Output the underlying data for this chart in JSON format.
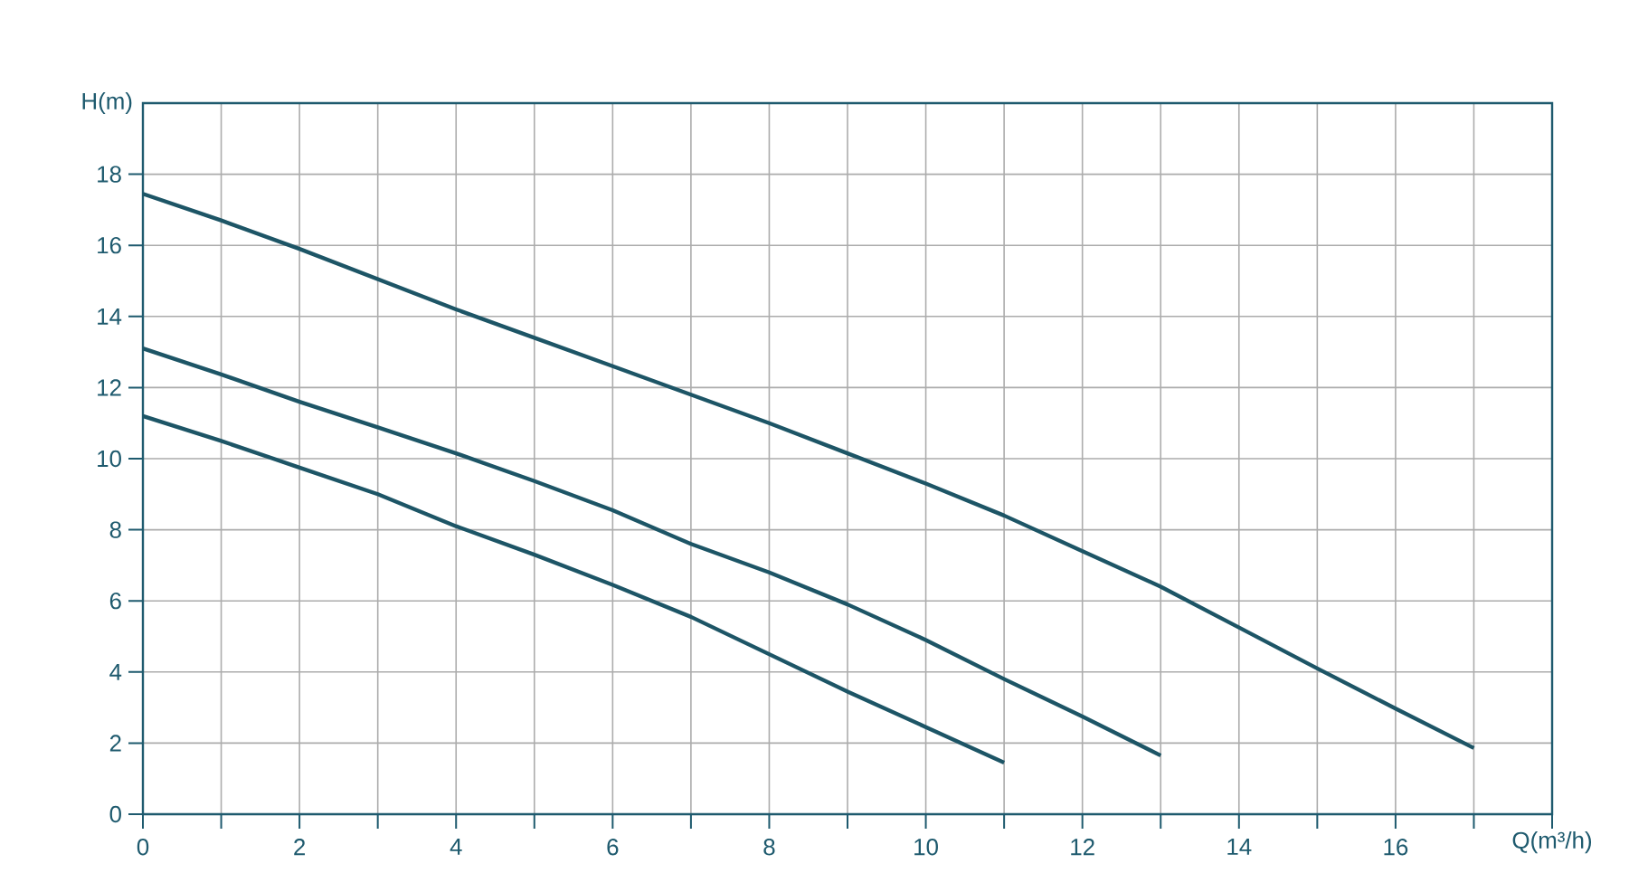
{
  "chart_data": {
    "type": "line",
    "xlabel": "Q(m³/h)",
    "ylabel": "H(m)",
    "xlim": [
      0,
      18
    ],
    "ylim": [
      0,
      20
    ],
    "xticks": [
      0,
      {
        "value": 1,
        "label": null
      },
      2,
      {
        "value": 3,
        "label": null
      },
      4,
      {
        "value": 5,
        "label": null
      },
      6,
      {
        "value": 7,
        "label": null
      },
      8,
      {
        "value": 9,
        "label": null
      },
      10,
      {
        "value": 11,
        "label": null
      },
      12,
      {
        "value": 13,
        "label": null
      },
      14,
      {
        "value": 15,
        "label": null
      },
      16,
      {
        "value": 17,
        "label": null
      },
      {
        "value": 18,
        "label": null
      }
    ],
    "yticks": [
      0,
      2,
      4,
      6,
      8,
      10,
      12,
      14,
      16,
      18
    ],
    "grid": true,
    "series": [
      {
        "color": "#1d5566",
        "x": [
          0,
          1,
          2,
          3,
          4,
          5,
          6,
          7,
          8,
          9,
          10,
          11,
          12,
          13,
          14,
          15,
          16,
          17
        ],
        "values": [
          17.45,
          16.7,
          15.9,
          15.05,
          14.2,
          13.4,
          12.6,
          11.8,
          11.0,
          10.15,
          9.3,
          8.4,
          7.4,
          6.4,
          5.25,
          4.1,
          2.97,
          1.86
        ]
      },
      {
        "color": "#1d5566",
        "x": [
          0,
          1,
          2,
          3,
          4,
          5,
          6,
          7,
          8,
          9,
          10,
          11,
          12,
          13
        ],
        "values": [
          13.1,
          12.37,
          11.6,
          10.88,
          10.15,
          9.37,
          8.55,
          7.6,
          6.8,
          5.9,
          4.9,
          3.8,
          2.75,
          1.65
        ]
      },
      {
        "color": "#1d5566",
        "x": [
          0,
          1,
          2,
          3,
          4,
          5,
          6,
          7,
          8,
          9,
          10,
          11
        ],
        "values": [
          11.2,
          10.5,
          9.75,
          9.0,
          8.1,
          7.3,
          6.45,
          5.55,
          4.5,
          3.45,
          2.45,
          1.45
        ]
      }
    ]
  }
}
